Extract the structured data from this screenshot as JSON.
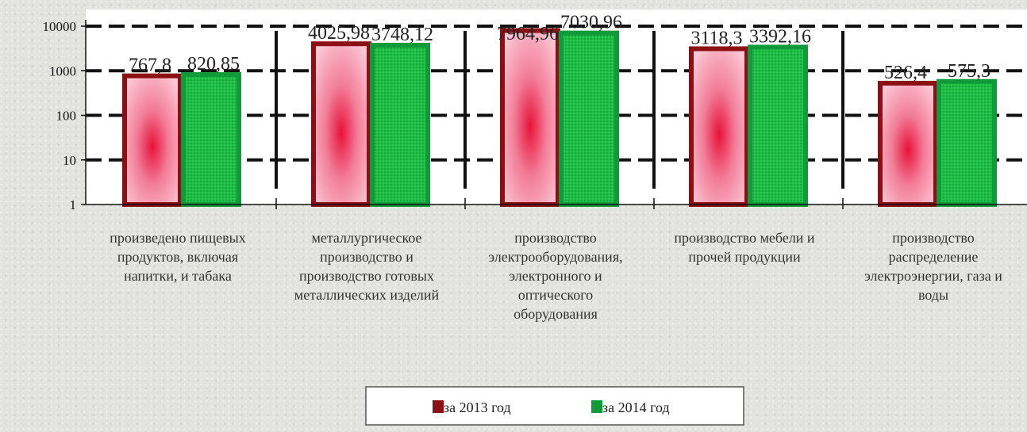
{
  "chart_data": {
    "type": "bar",
    "y_scale": "log10",
    "ylim": [
      1,
      10000
    ],
    "y_ticks": [
      "1",
      "10",
      "100",
      "1000",
      "10000"
    ],
    "grid": "dashed horizontal",
    "legend_position": "bottom",
    "categories": [
      [
        "произведено пищевых",
        "продуктов, включая",
        "напитки, и табака"
      ],
      [
        "металлургическое",
        "производство и",
        "производство готовых",
        "металлических изделий"
      ],
      [
        "производство",
        "электрооборудования,",
        "электронного и",
        "оптического",
        "оборудования"
      ],
      [
        "производство мебели и",
        "прочей продукции"
      ],
      [
        "производство",
        "распределение",
        "электроэнергии, газа и",
        "воды"
      ]
    ],
    "series": [
      {
        "name": "за 2013 год",
        "values": [
          767.8,
          4025.98,
          7964.96,
          3118.3,
          526.4
        ],
        "labels": [
          "767,8",
          "4025,98",
          "7964,96",
          "3118,3",
          "526,4"
        ],
        "color": "#8b0f14",
        "fill": "#f5a0b8"
      },
      {
        "name": "за 2014 год",
        "values": [
          820.85,
          3748.12,
          7030.96,
          3392.16,
          575.3
        ],
        "labels": [
          "820,85",
          "3748,12",
          "7030,96",
          "3392,16",
          "575,3"
        ],
        "color": "#119a3a",
        "fill": "#1fbf47"
      }
    ]
  }
}
